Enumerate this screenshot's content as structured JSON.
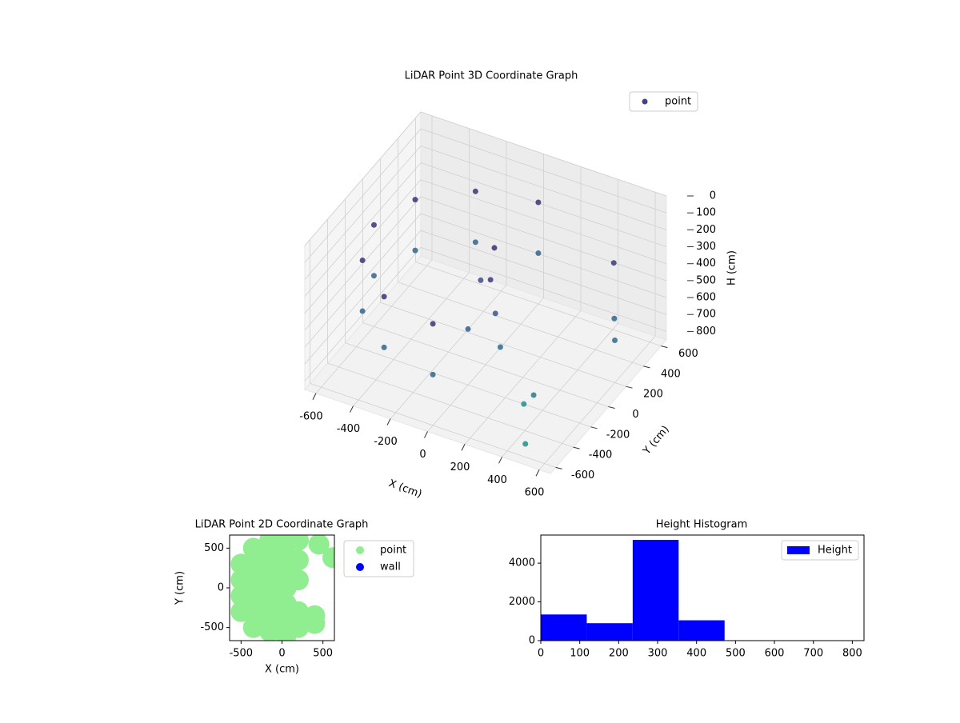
{
  "chart_data": [
    {
      "type": "scatter3d",
      "title": "LiDAR Point 3D Coordinate Graph",
      "xlabel": "X (cm)",
      "ylabel": "Y (cm)",
      "zlabel": "H (cm)",
      "xlim": [
        -660,
        660
      ],
      "ylim": [
        -660,
        660
      ],
      "zlim": [
        850,
        0
      ],
      "xticks": [
        -600,
        -400,
        -200,
        0,
        200,
        400,
        600
      ],
      "yticks": [
        -600,
        -400,
        -200,
        0,
        200,
        400,
        600
      ],
      "zticks": [
        0,
        100,
        200,
        300,
        400,
        500,
        600,
        700,
        800
      ],
      "legend": "upper right",
      "series": [
        {
          "name": "point",
          "color": "#414487",
          "x": [
            0,
            -300,
            -520,
            -600,
            -520,
            -300,
            0,
            0,
            -300,
            -520,
            -600,
            -520,
            -300,
            0,
            0,
            50,
            -50,
            100,
            0,
            150,
            500,
            550,
            600,
            400,
            300,
            450
          ],
          "y": [
            -600,
            -520,
            -300,
            0,
            300,
            520,
            600,
            -600,
            -520,
            -300,
            0,
            300,
            520,
            600,
            100,
            -50,
            50,
            -100,
            -200,
            -150,
            400,
            300,
            200,
            -300,
            -200,
            -500
          ],
          "z": [
            250,
            250,
            250,
            250,
            250,
            250,
            250,
            550,
            550,
            550,
            550,
            550,
            550,
            550,
            220,
            300,
            400,
            450,
            520,
            600,
            300,
            550,
            600,
            700,
            850,
            850
          ]
        }
      ]
    },
    {
      "type": "scatter",
      "title": "LiDAR Point 2D Coordinate Graph",
      "xlabel": "X (cm)",
      "ylabel": "Y (cm)",
      "xlim": [
        -640,
        640
      ],
      "ylim": [
        -665,
        665
      ],
      "xticks": [
        -500,
        0,
        500
      ],
      "yticks": [
        -500,
        0,
        500
      ],
      "legend": "outside right",
      "series": [
        {
          "name": "point",
          "color": "#90ee90",
          "x": [
            -500,
            -500,
            -500,
            -500,
            -350,
            -350,
            -350,
            -350,
            -350,
            -350,
            -150,
            -150,
            -150,
            -150,
            -150,
            -150,
            -150,
            50,
            50,
            50,
            50,
            50,
            50,
            50,
            200,
            200,
            200,
            200,
            200,
            400,
            400,
            450,
            620
          ],
          "y": [
            -300,
            -100,
            100,
            300,
            -500,
            -300,
            -100,
            100,
            300,
            500,
            -550,
            -350,
            -150,
            50,
            250,
            450,
            600,
            -600,
            -400,
            -200,
            0,
            200,
            400,
            600,
            -500,
            -300,
            100,
            350,
            600,
            -350,
            -450,
            550,
            380
          ]
        },
        {
          "name": "wall",
          "color": "#0000ff",
          "x": [],
          "y": []
        }
      ]
    },
    {
      "type": "histogram",
      "title": "Height Histogram",
      "xlim": [
        0,
        830
      ],
      "ylim": [
        0,
        5450
      ],
      "xticks": [
        0,
        100,
        200,
        300,
        400,
        500,
        600,
        700,
        800
      ],
      "yticks": [
        0,
        2000,
        4000
      ],
      "legend": "upper right",
      "bins": [
        0,
        118,
        236,
        354,
        472,
        590,
        708,
        826
      ],
      "series": [
        {
          "name": "Height",
          "color": "#0000ff",
          "values": [
            1350,
            900,
            5200,
            1050,
            0,
            0,
            0
          ]
        }
      ]
    }
  ]
}
